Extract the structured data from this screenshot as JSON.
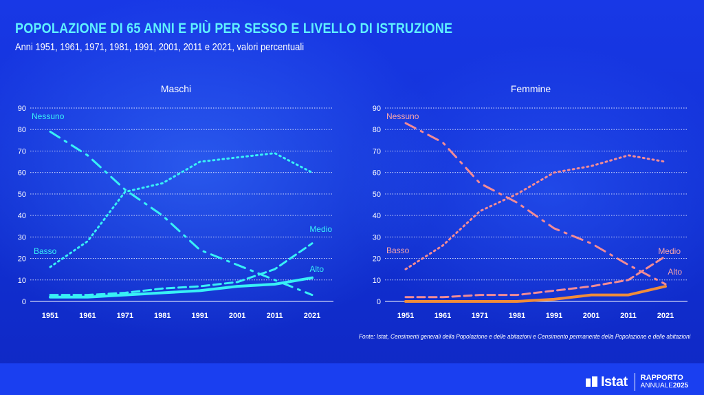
{
  "header": {
    "title": "POPOLAZIONE DI 65 ANNI E PIÙ PER SESSO E LIVELLO DI ISTRUZIONE",
    "subtitle": "Anni 1951, 1961, 1971, 1981, 1991, 2001, 2011 e 2021, valori percentuali"
  },
  "source": "Fonte: Istat, Censimenti generali della Popolazione e delle abitazioni e Censimento permanente della Popolazione e delle abitazioni",
  "logo": {
    "name": "Istat",
    "line1": "RAPPORTO",
    "line2_light": "ANNUALE",
    "line2_bold": "2025"
  },
  "chart_data": [
    {
      "type": "line",
      "title": "Maschi",
      "categories": [
        "1951",
        "1961",
        "1971",
        "1981",
        "1991",
        "2001",
        "2011",
        "2021"
      ],
      "ylim": [
        0,
        90
      ],
      "yticks": [
        0,
        10,
        20,
        30,
        40,
        50,
        60,
        70,
        80,
        90
      ],
      "grid": true,
      "colors": {
        "series": "#38f0f6"
      },
      "series": [
        {
          "name": "Nessuno",
          "style": "dashdot",
          "width": 3,
          "values": [
            79,
            68,
            52,
            40,
            24,
            17,
            10,
            3
          ]
        },
        {
          "name": "Basso",
          "style": "dotted",
          "width": 3,
          "values": [
            16,
            28,
            51,
            55,
            65,
            67,
            69,
            60
          ]
        },
        {
          "name": "Medio",
          "style": "dashed",
          "width": 3,
          "values": [
            3,
            3,
            4,
            6,
            7,
            9,
            15,
            27
          ]
        },
        {
          "name": "Alto",
          "style": "solid",
          "width": 4,
          "values": [
            2,
            2,
            3,
            4,
            5,
            7,
            8,
            11
          ]
        }
      ]
    },
    {
      "type": "line",
      "title": "Femmine",
      "categories": [
        "1951",
        "1961",
        "1971",
        "1981",
        "1991",
        "2001",
        "2011",
        "2021"
      ],
      "ylim": [
        0,
        90
      ],
      "yticks": [
        0,
        10,
        20,
        30,
        40,
        50,
        60,
        70,
        80,
        90
      ],
      "grid": true,
      "colors": {
        "main": "#f28b95",
        "alto": "#f08c3a"
      },
      "series": [
        {
          "name": "Nessuno",
          "style": "dashdot",
          "width": 3,
          "color": "#f28b95",
          "values": [
            83,
            74,
            55,
            46,
            34,
            27,
            17,
            8
          ]
        },
        {
          "name": "Basso",
          "style": "dotted",
          "width": 3,
          "color": "#f28b95",
          "values": [
            15,
            26,
            42,
            50,
            60,
            63,
            68,
            65
          ]
        },
        {
          "name": "Medio",
          "style": "dashed",
          "width": 3,
          "color": "#f28b95",
          "values": [
            2,
            2,
            3,
            3,
            5,
            7,
            10,
            21
          ]
        },
        {
          "name": "Alto",
          "style": "solid",
          "width": 4,
          "color": "#f08c3a",
          "values": [
            0,
            0,
            0,
            0,
            1,
            3,
            3,
            7
          ]
        }
      ]
    }
  ]
}
